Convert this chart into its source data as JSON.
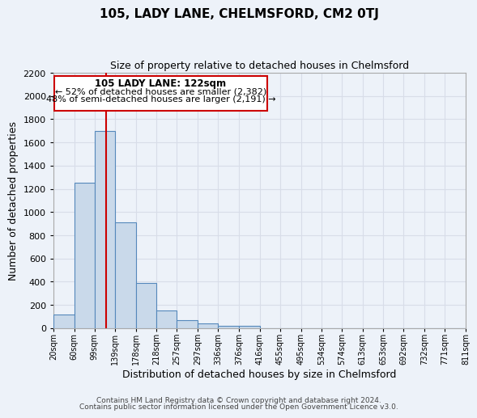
{
  "title": "105, LADY LANE, CHELMSFORD, CM2 0TJ",
  "subtitle": "Size of property relative to detached houses in Chelmsford",
  "xlabel": "Distribution of detached houses by size in Chelmsford",
  "ylabel": "Number of detached properties",
  "bar_color": "#c9d9ea",
  "bar_edge_color": "#5588bb",
  "background_color": "#edf2f9",
  "grid_color": "#d8dde8",
  "property_line_x": 122,
  "property_line_color": "#cc0000",
  "annotation_title": "105 LADY LANE: 122sqm",
  "annotation_line1": "← 52% of detached houses are smaller (2,382)",
  "annotation_line2": "48% of semi-detached houses are larger (2,191) →",
  "annotation_box_color": "#ffffff",
  "annotation_box_edge": "#cc0000",
  "bins": [
    20,
    60,
    99,
    139,
    178,
    218,
    257,
    297,
    336,
    376,
    416,
    455,
    495,
    534,
    574,
    613,
    653,
    692,
    732,
    771,
    811
  ],
  "counts": [
    120,
    1250,
    1700,
    910,
    390,
    150,
    70,
    40,
    20,
    20,
    0,
    0,
    0,
    0,
    0,
    0,
    0,
    0,
    0,
    0
  ],
  "ylim": [
    0,
    2200
  ],
  "yticks": [
    0,
    200,
    400,
    600,
    800,
    1000,
    1200,
    1400,
    1600,
    1800,
    2000,
    2200
  ],
  "tick_labels": [
    "20sqm",
    "60sqm",
    "99sqm",
    "139sqm",
    "178sqm",
    "218sqm",
    "257sqm",
    "297sqm",
    "336sqm",
    "376sqm",
    "416sqm",
    "455sqm",
    "495sqm",
    "534sqm",
    "574sqm",
    "613sqm",
    "653sqm",
    "692sqm",
    "732sqm",
    "771sqm",
    "811sqm"
  ],
  "footer1": "Contains HM Land Registry data © Crown copyright and database right 2024.",
  "footer2": "Contains public sector information licensed under the Open Government Licence v3.0."
}
